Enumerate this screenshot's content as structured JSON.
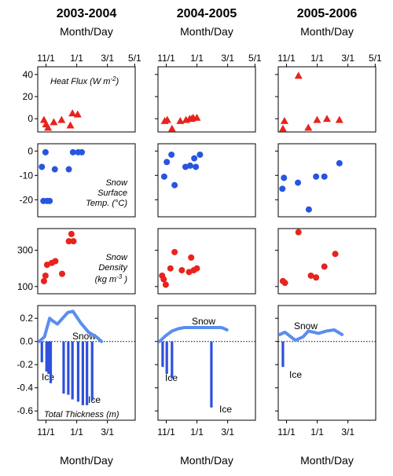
{
  "colors": {
    "red": "#e8231c",
    "blue": "#2755e0",
    "snow": "#5b8def",
    "ice": "#2e50dd"
  },
  "columns": [
    {
      "title": "2003-2004",
      "header_axis_label": "Month/Day",
      "ticks": [
        "11/1",
        "1/1",
        "3/1",
        "5/1"
      ]
    },
    {
      "title": "2004-2005",
      "header_axis_label": "Month/Day",
      "ticks": [
        "11/1",
        "1/1",
        "3/1",
        "5/1"
      ]
    },
    {
      "title": "2005-2006",
      "header_axis_label": "Month/Day",
      "ticks": [
        "11/1",
        "1/1",
        "3/1",
        "5/1"
      ]
    }
  ],
  "bottom_axis_label": "Month/Day",
  "chart_data": [
    {
      "type": "scatter",
      "row": "heat_flux",
      "label": "Heat Flux",
      "unit_prefix": "W m",
      "unit_exp": "-2",
      "y_ticks": [
        40,
        20,
        0
      ],
      "ylim": [
        -12,
        47
      ],
      "xlim": [
        -3,
        185
      ],
      "marker": "triangle",
      "series": [
        {
          "season": "2003-2004",
          "x": [
            9,
            13,
            17,
            28,
            43,
            60,
            64,
            74
          ],
          "y": [
            -1,
            -5,
            -8,
            -3,
            -1,
            -6,
            5,
            4
          ]
        },
        {
          "season": "2004-2005",
          "x": [
            10,
            15,
            24,
            40,
            51,
            58,
            62,
            65,
            72
          ],
          "y": [
            -2,
            -1,
            -9,
            -2,
            -1,
            0,
            0,
            1,
            1
          ]
        },
        {
          "season": "2005-2006",
          "x": [
            6,
            9,
            36,
            55,
            72,
            91,
            115
          ],
          "y": [
            -9,
            -2,
            39,
            -8,
            -1,
            0,
            -1
          ]
        }
      ]
    },
    {
      "type": "scatter",
      "row": "snow_surface_temp",
      "label_lines": [
        "Snow",
        "Surface",
        "Temp. (°C)"
      ],
      "y_ticks": [
        0,
        -10,
        -20
      ],
      "ylim": [
        -27,
        3
      ],
      "xlim": [
        -3,
        185
      ],
      "marker": "circle",
      "series": [
        {
          "season": "2003-2004",
          "x": [
            5,
            8,
            12,
            15,
            20,
            30,
            57,
            65,
            75,
            82
          ],
          "y": [
            -6.5,
            -20.5,
            -0.5,
            -20.5,
            -20.5,
            -7.5,
            -7.5,
            -0.5,
            -0.5,
            -0.5
          ]
        },
        {
          "season": "2004-2005",
          "x": [
            9,
            14,
            23,
            29,
            50,
            59,
            67,
            70,
            78
          ],
          "y": [
            -10.5,
            -4.5,
            -1.5,
            -14,
            -6.5,
            -6,
            -3,
            -6.5,
            -1.5
          ]
        },
        {
          "season": "2005-2006",
          "x": [
            5,
            8,
            35,
            56,
            70,
            86,
            115
          ],
          "y": [
            -15.5,
            -11,
            -13,
            -24,
            -10.5,
            -10.5,
            -5
          ]
        }
      ]
    },
    {
      "type": "scatter",
      "row": "snow_density",
      "label_lines": [
        "Snow",
        "Density"
      ],
      "unit_prefix": "kg m",
      "unit_exp": "-3",
      "y_ticks": [
        300,
        100
      ],
      "ylim": [
        60,
        420
      ],
      "xlim": [
        -3,
        185
      ],
      "marker": "circle",
      "series": [
        {
          "season": "2003-2004",
          "x": [
            9,
            12,
            15,
            24,
            31,
            44,
            57,
            62,
            66
          ],
          "y": [
            130,
            160,
            220,
            230,
            240,
            170,
            350,
            390,
            350
          ]
        },
        {
          "season": "2004-2005",
          "x": [
            5,
            8,
            12,
            21,
            29,
            43,
            57,
            61,
            66,
            72
          ],
          "y": [
            160,
            140,
            110,
            200,
            290,
            190,
            180,
            260,
            190,
            200
          ]
        },
        {
          "season": "2005-2006",
          "x": [
            6,
            10,
            36,
            60,
            70,
            86,
            107
          ],
          "y": [
            130,
            120,
            400,
            160,
            150,
            210,
            280
          ]
        }
      ]
    },
    {
      "type": "area",
      "row": "total_thickness",
      "label": "Total Thickness (m)",
      "y_ticks": [
        0.2,
        0.0,
        -0.2,
        -0.4,
        -0.6
      ],
      "ylim": [
        -0.68,
        0.31
      ],
      "xlim": [
        -3,
        185
      ],
      "x_ticks": [
        "11/1",
        "1/1",
        "3/1"
      ],
      "snow_label": "Snow",
      "ice_label": "Ice",
      "series": [
        {
          "season": "2003-2004",
          "snow": {
            "x": [
              0,
              10,
              20,
              25,
              35,
              45,
              55,
              65,
              80,
              95,
              110,
              120
            ],
            "y": [
              0,
              0.04,
              0.2,
              0.18,
              0.15,
              0.2,
              0.25,
              0.26,
              0.16,
              0.08,
              0.04,
              0.0
            ]
          },
          "ice": {
            "x": [
              5,
              14,
              18,
              22,
              47,
              56,
              64,
              75,
              84,
              92,
              102
            ],
            "y": [
              -0.18,
              -0.26,
              -0.28,
              -0.36,
              -0.45,
              -0.46,
              -0.5,
              -0.52,
              -0.55,
              -0.55,
              -0.51
            ]
          }
        },
        {
          "season": "2004-2005",
          "snow": {
            "x": [
              0,
              12,
              24,
              36,
              48,
              60,
              80,
              100,
              120,
              130
            ],
            "y": [
              0.0,
              0.05,
              0.09,
              0.11,
              0.12,
              0.12,
              0.12,
              0.12,
              0.12,
              0.1
            ]
          },
          "ice": {
            "x": [
              6,
              14,
              24,
              100
            ],
            "y": [
              -0.22,
              -0.28,
              -0.32,
              -0.57
            ]
          }
        },
        {
          "season": "2005-2006",
          "snow": {
            "x": [
              0,
              10,
              30,
              45,
              55,
              75,
              90,
              105,
              120
            ],
            "y": [
              0.06,
              0.08,
              0.01,
              0.04,
              0.09,
              0.07,
              0.09,
              0.1,
              0.06
            ]
          },
          "ice": {
            "x": [
              6
            ],
            "y": [
              -0.22
            ]
          }
        }
      ]
    }
  ]
}
